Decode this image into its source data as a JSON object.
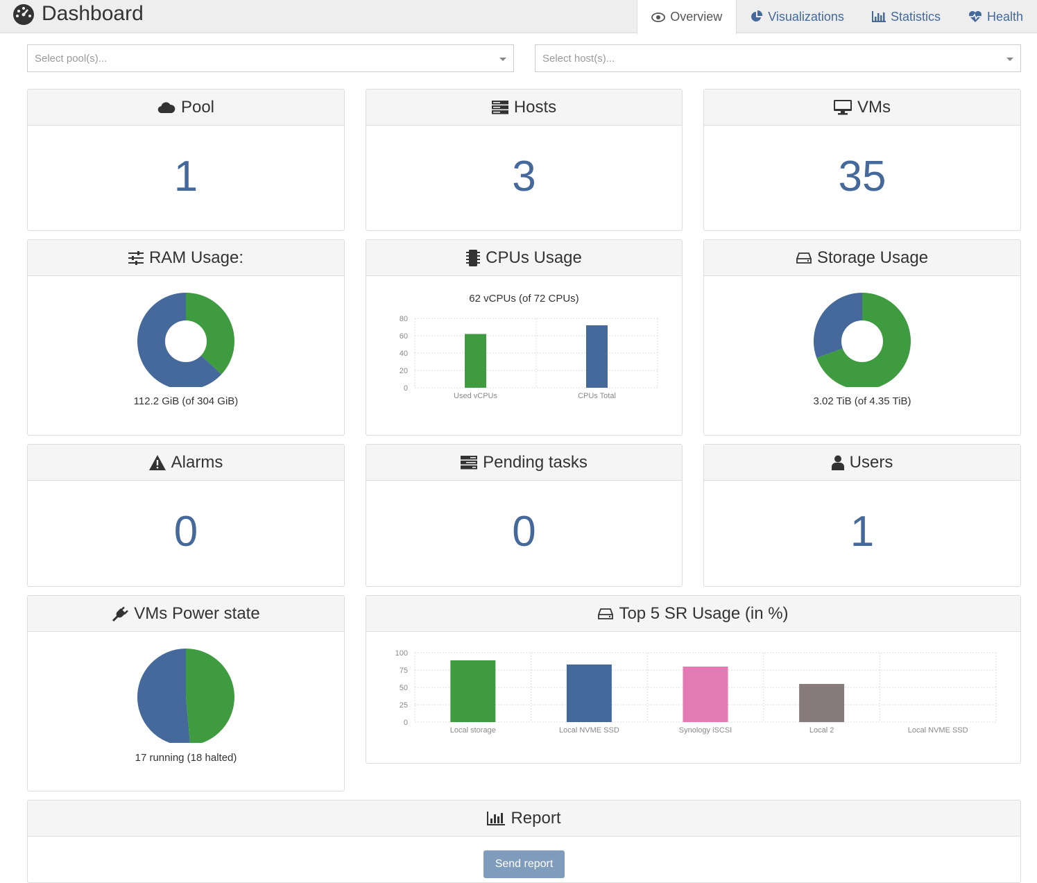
{
  "header": {
    "title": "Dashboard",
    "tabs": [
      {
        "label": "Overview",
        "icon": "eye-icon",
        "active": true
      },
      {
        "label": "Visualizations",
        "icon": "pie-chart-icon"
      },
      {
        "label": "Statistics",
        "icon": "bar-chart-icon"
      },
      {
        "label": "Health",
        "icon": "heartbeat-icon"
      }
    ]
  },
  "filters": {
    "pool_placeholder": "Select pool(s)...",
    "host_placeholder": "Select host(s)..."
  },
  "cards": {
    "pool": {
      "title": "Pool",
      "value": "1",
      "icon": "cloud-icon"
    },
    "hosts": {
      "title": "Hosts",
      "value": "3",
      "icon": "server-icon"
    },
    "vms": {
      "title": "VMs",
      "value": "35",
      "icon": "desktop-icon"
    },
    "ram": {
      "title": "RAM Usage:",
      "caption": "112.2 GiB (of 304 GiB)",
      "icon": "sliders-icon"
    },
    "cpus": {
      "title": "CPUs Usage",
      "caption": "62 vCPUs (of 72 CPUs)",
      "icon": "chip-icon"
    },
    "storage": {
      "title": "Storage Usage",
      "caption": "3.02 TiB (of 4.35 TiB)",
      "icon": "hdd-icon"
    },
    "alarms": {
      "title": "Alarms",
      "value": "0",
      "icon": "warning-icon"
    },
    "pending": {
      "title": "Pending tasks",
      "value": "0",
      "icon": "tasks-icon"
    },
    "users": {
      "title": "Users",
      "value": "1",
      "icon": "user-icon"
    },
    "power": {
      "title": "VMs Power state",
      "caption": "17 running (18 halted)",
      "icon": "plug-icon"
    },
    "sr": {
      "title": "Top 5 SR Usage (in %)",
      "icon": "hdd-icon"
    },
    "report": {
      "title": "Report",
      "button": "Send report",
      "icon": "bar-chart-icon"
    }
  },
  "colors": {
    "blue": "#44699a",
    "green": "#3f9b3f",
    "pink": "#e27ab4",
    "gray": "#877b7c"
  },
  "chart_data": [
    {
      "id": "ram",
      "type": "pie",
      "donut": true,
      "values": [
        112.2,
        191.8
      ],
      "colors": [
        "#3f9b3f",
        "#44699a"
      ]
    },
    {
      "id": "cpus",
      "type": "bar",
      "categories": [
        "Used vCPUs",
        "CPUs Total"
      ],
      "values": [
        62,
        72
      ],
      "colors": [
        "#3f9b3f",
        "#44699a"
      ],
      "ylim": [
        0,
        80
      ],
      "yticks": [
        0,
        20,
        40,
        60,
        80
      ],
      "grid": true
    },
    {
      "id": "storage",
      "type": "pie",
      "donut": true,
      "values": [
        3.02,
        1.33
      ],
      "colors": [
        "#3f9b3f",
        "#44699a"
      ]
    },
    {
      "id": "power",
      "type": "pie",
      "donut": false,
      "values": [
        17,
        18
      ],
      "colors": [
        "#3f9b3f",
        "#44699a"
      ]
    },
    {
      "id": "sr",
      "type": "bar",
      "categories": [
        "Local storage",
        "Local NVME SSD",
        "Synology iSCSI",
        "Local 2",
        "Local NVME SSD"
      ],
      "values": [
        89,
        83,
        80,
        55,
        0
      ],
      "colors": [
        "#3f9b3f",
        "#44699a",
        "#e27ab4",
        "#877b7c",
        "#3f9b3f"
      ],
      "ylim": [
        0,
        100
      ],
      "yticks": [
        0,
        25,
        50,
        75,
        100
      ],
      "grid": true
    }
  ]
}
